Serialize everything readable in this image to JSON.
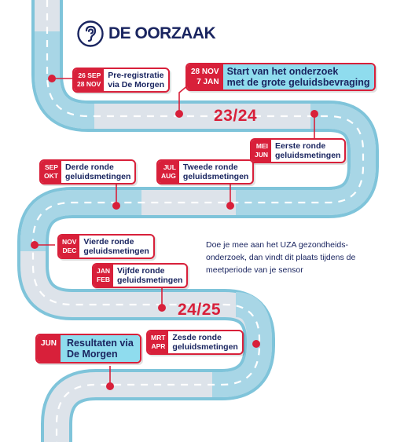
{
  "brand": {
    "name": "DE OORZAAK",
    "logo_icon": "ear-icon"
  },
  "colors": {
    "road": "#dde3ea",
    "road_dark": "#a9b4c0",
    "road_edge": "#7fc4da",
    "accent": "#d8203a",
    "navy": "#1a2560",
    "highlight": "#8fdcee"
  },
  "milestones": [
    {
      "dates": [
        "26 SEP",
        "28 NOV"
      ],
      "lines": [
        "Pre-registratie",
        "via De Morgen"
      ]
    },
    {
      "dates": [
        "28 NOV",
        "7 JAN"
      ],
      "lines": [
        "Start van het onderzoek",
        "met de grote geluidsbevraging"
      ]
    },
    {
      "dates": [
        "MEI",
        "JUN"
      ],
      "lines": [
        "Eerste ronde",
        "geluidsmetingen"
      ]
    },
    {
      "dates": [
        "JUL",
        "AUG"
      ],
      "lines": [
        "Tweede ronde",
        "geluidsmetingen"
      ]
    },
    {
      "dates": [
        "SEP",
        "OKT"
      ],
      "lines": [
        "Derde ronde",
        "geluidsmetingen"
      ]
    },
    {
      "dates": [
        "NOV",
        "DEC"
      ],
      "lines": [
        "Vierde ronde",
        "geluidsmetingen"
      ]
    },
    {
      "dates": [
        "JAN",
        "FEB"
      ],
      "lines": [
        "Vijfde ronde",
        "geluidsmetingen"
      ]
    },
    {
      "dates": [
        "MRT",
        "APR"
      ],
      "lines": [
        "Zesde ronde",
        "geluidsmetingen"
      ]
    },
    {
      "dates": [
        "JUN"
      ],
      "lines": [
        "Resultaten via",
        "De Morgen"
      ]
    }
  ],
  "years": [
    "23/24",
    "24/25"
  ],
  "info_text": "Doe je mee aan het UZA gezondheids-onderzoek, dan vindt dit plaats tijdens de meetperiode van je sensor"
}
